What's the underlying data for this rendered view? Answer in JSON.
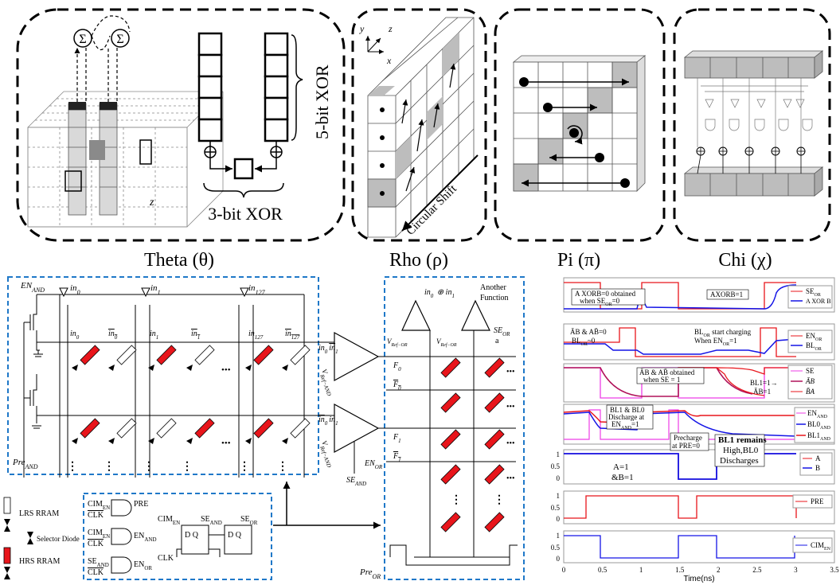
{
  "panels": {
    "theta": {
      "title": "Theta (θ)",
      "xor5": "5-bit XOR",
      "xor3": "3-bit XOR",
      "sigma": "Σ",
      "z": "z"
    },
    "rho": {
      "title": "Rho (ρ)",
      "shift": "Circular Shift",
      "y": "y",
      "z": "z",
      "x": "x"
    },
    "pi": {
      "title": "Pi (π)"
    },
    "chi": {
      "title": "Chi (χ)"
    }
  },
  "circuit": {
    "en_and": "EN",
    "en_and_sub": "AND",
    "pre_and": "Pre",
    "pre_and_sub": "AND",
    "inputs": [
      "in",
      "in",
      "in"
    ],
    "input_subs": [
      "0",
      "1",
      "127"
    ],
    "col_labels": [
      "in",
      "in",
      "in",
      "in",
      "in",
      "in"
    ],
    "col_subs": [
      "0",
      "0",
      "1",
      "1",
      "127",
      "127"
    ],
    "ellipsis": "•••",
    "sa_top": "in",
    "sa_bottom": "in",
    "vref_and": "V",
    "vref_sub": "Ref−AND",
    "se_and": "SE",
    "se_and_sub": "AND",
    "en_or": "EN",
    "en_or_sub": "OR",
    "pre_or": "Pre",
    "pre_or_sub": "OR",
    "xor_label": "in",
    "another": "Another",
    "function": "Function",
    "vref_or": "V",
    "vref_or_sub": "Ref−OR",
    "se_or": "SE",
    "se_or_sub": "OR",
    "a": "a",
    "f_labels": [
      "F",
      "F",
      "F",
      "F"
    ],
    "f_subs": [
      "0",
      "0",
      "1",
      "1"
    ]
  },
  "legend": {
    "lrs": "LRS RRAM",
    "selector": "Selector Diode",
    "hrs": "HRS RRAM"
  },
  "logic": {
    "gate1_in": [
      "CIM",
      "CLK"
    ],
    "gate1_out": "PRE",
    "gate2_in": [
      "CIM",
      "CLK"
    ],
    "gate2_out": "EN",
    "gate2_out_sub": "AND",
    "gate3_in": [
      "SE",
      "CLK"
    ],
    "gate3_out": "EN",
    "gate3_out_sub": "OR",
    "ff_in": "CIM",
    "ff_mid": "SE",
    "ff_mid_sub": "AND",
    "ff_out": "SE",
    "ff_out_sub": "OR",
    "ff_clk": "CLK",
    "dq": "D Q",
    "sub_en": "EN",
    "sub_and": "AND"
  },
  "waveforms": {
    "colors": {
      "red": "#e8151b",
      "blue": "#1414e6",
      "pink": "#ee3ee6",
      "magenta": "#b0125a"
    },
    "xlabel": "Time(ns)",
    "xticks": [
      "0",
      "0.5",
      "1",
      "1.5",
      "2",
      "2.5",
      "3",
      "3.5"
    ],
    "xlim": [
      0,
      3.5
    ],
    "panels": [
      {
        "legend": [
          "SE",
          "A XOR B"
        ],
        "legend_subs": [
          "OR",
          ""
        ],
        "notes": [
          "A XORB=0 obtained",
          "when SE",
          "=0",
          "AXORB=1"
        ],
        "note_subs": [
          "OR"
        ]
      },
      {
        "legend": [
          "EN",
          "BL"
        ],
        "legend_subs": [
          "OR",
          "OR"
        ],
        "notes": [
          "ĀB & AB̄=0",
          "BL",
          "~0",
          "BL",
          " start charging",
          "When EN",
          "=1"
        ],
        "note_subs": [
          "OR",
          "OR",
          "OR"
        ]
      },
      {
        "legend": [
          "SE",
          "ĀB",
          "B̄A"
        ],
        "notes": [
          "ĀB & AB̄ obtained",
          "when SE = 1",
          "BL1=1→",
          "ĀB=1"
        ]
      },
      {
        "legend": [
          "EN",
          "BL0",
          "BL1"
        ],
        "legend_subs": [
          "AND",
          "AND",
          "AND"
        ],
        "notes": [
          "BL1 & BL0",
          "Discharge at",
          "EN",
          "=1",
          "Precharge",
          "at PRE=0",
          "BL1  remains",
          "High,BL0",
          "Discharges"
        ],
        "note_subs": [
          "AND"
        ]
      },
      {
        "legend": [
          "A",
          "B"
        ],
        "notes": [
          "A=1",
          "&B=1"
        ],
        "yticks": [
          "1",
          "0.5",
          "0"
        ]
      },
      {
        "legend": [
          "PRE"
        ],
        "yticks": [
          "1",
          "0.5",
          "0"
        ]
      },
      {
        "legend": [
          "CIM"
        ],
        "legend_subs": [
          "EN"
        ],
        "yticks": [
          "1",
          "0.5",
          "0"
        ]
      }
    ]
  }
}
